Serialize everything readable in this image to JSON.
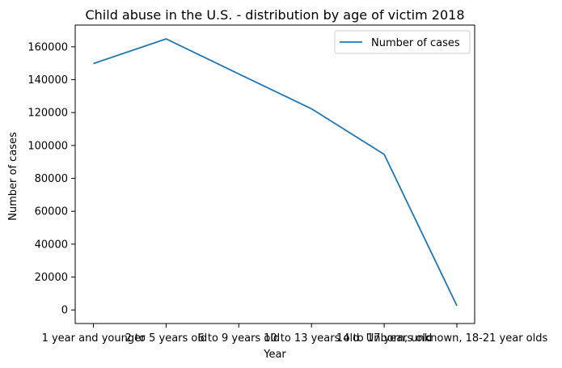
{
  "chart_data": {
    "type": "line",
    "title": "Child abuse in the U.S. - distribution by age of victim 2018",
    "xlabel": "Year",
    "ylabel": "Number of cases",
    "categories": [
      "1 year and younger",
      "2 to 5 years old",
      "6 to 9 years old",
      "10 to 13 years old",
      "14 to 17 years old",
      "Unborn, unknown, 18-21 year olds"
    ],
    "series": [
      {
        "name": "Number of cases",
        "color": "#1f77b4",
        "values": [
          149800,
          164800,
          143500,
          122300,
          94600,
          2600
        ]
      }
    ],
    "ylim": [
      -8240,
      173200
    ],
    "yticks": [
      0,
      20000,
      40000,
      60000,
      80000,
      100000,
      120000,
      140000,
      160000
    ],
    "grid": false,
    "legend": "top-right"
  }
}
